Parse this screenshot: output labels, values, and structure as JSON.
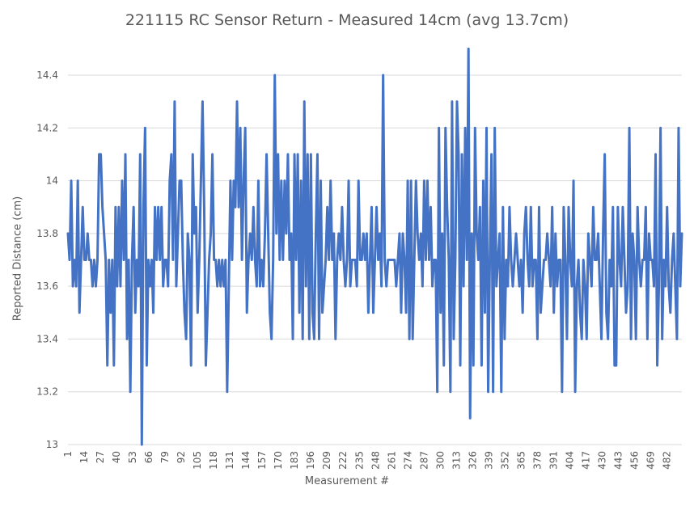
{
  "chart_data": {
    "type": "line",
    "title": "221115 RC Sensor Return - Measured 14cm (avg 13.7cm)",
    "xlabel": "Measurement #",
    "ylabel": "Reported Distance (cm)",
    "ylim": [
      13,
      14.5
    ],
    "yticks": [
      13,
      13.2,
      13.4,
      13.6,
      13.8,
      14,
      14.2,
      14.4
    ],
    "xlim": [
      1,
      494
    ],
    "xticks": [
      1,
      14,
      27,
      40,
      53,
      66,
      79,
      92,
      105,
      118,
      131,
      144,
      157,
      170,
      183,
      196,
      209,
      222,
      235,
      248,
      261,
      274,
      287,
      300,
      313,
      326,
      339,
      352,
      365,
      378,
      391,
      404,
      417,
      430,
      443,
      456,
      469,
      482
    ],
    "grid": "horizontal",
    "legend": "none",
    "color": "#4472c4",
    "series": [
      {
        "x_start": 1,
        "values": [
          13.8,
          13.7,
          14.0,
          13.6,
          13.7,
          13.6,
          14.0,
          13.5,
          13.7,
          13.9,
          13.7,
          13.7,
          13.8,
          13.7,
          13.7,
          13.6,
          13.7,
          13.6,
          13.7,
          14.1,
          14.1,
          13.9,
          13.8,
          13.7,
          13.3,
          13.7,
          13.5,
          13.7,
          13.3,
          13.9,
          13.6,
          13.9,
          13.6,
          14.0,
          13.7,
          14.1,
          13.4,
          13.7,
          13.2,
          13.7,
          13.9,
          13.5,
          13.7,
          13.6,
          14.1,
          13.0,
          13.9,
          14.2,
          13.3,
          13.7,
          13.6,
          13.7,
          13.5,
          13.9,
          13.7,
          13.9,
          13.7,
          13.9,
          13.6,
          13.7,
          13.7,
          13.6,
          14.0,
          14.1,
          13.7,
          14.3,
          13.6,
          13.8,
          14.0,
          14.0,
          13.7,
          13.5,
          13.4,
          13.8,
          13.7,
          13.3,
          14.1,
          13.8,
          13.9,
          13.5,
          13.7,
          14.0,
          14.3,
          13.9,
          13.3,
          13.5,
          13.7,
          13.8,
          14.1,
          13.7,
          13.7,
          13.6,
          13.7,
          13.6,
          13.7,
          13.6,
          13.7,
          13.2,
          13.6,
          14.0,
          13.7,
          14.0,
          13.9,
          14.3,
          13.9,
          14.2,
          13.7,
          14.0,
          14.2,
          13.5,
          13.7,
          13.8,
          13.7,
          13.9,
          13.7,
          13.6,
          14.0,
          13.6,
          13.7,
          13.6,
          13.8,
          14.1,
          13.8,
          13.5,
          13.4,
          13.7,
          14.4,
          13.8,
          14.1,
          13.7,
          14.0,
          13.7,
          14.0,
          13.8,
          14.1,
          13.7,
          13.8,
          13.4,
          14.1,
          13.7,
          14.1,
          13.5,
          14.0,
          13.4,
          14.3,
          13.6,
          14.1,
          13.4,
          14.1,
          13.5,
          13.4,
          13.8,
          14.1,
          13.4,
          14.0,
          13.5,
          13.6,
          13.7,
          13.9,
          13.7,
          14.0,
          13.7,
          13.8,
          13.4,
          13.7,
          13.8,
          13.7,
          13.9,
          13.7,
          13.6,
          13.7,
          14.0,
          13.6,
          13.7,
          13.7,
          13.7,
          13.6,
          14.0,
          13.7,
          13.7,
          13.8,
          13.7,
          13.8,
          13.5,
          13.7,
          13.9,
          13.5,
          13.7,
          13.9,
          13.7,
          13.8,
          13.6,
          14.4,
          13.7,
          13.6,
          13.7,
          13.7,
          13.7,
          13.7,
          13.7,
          13.6,
          13.7,
          13.8,
          13.5,
          13.8,
          13.7,
          13.5,
          14.0,
          13.4,
          14.0,
          13.4,
          13.7,
          14.0,
          13.8,
          13.7,
          13.8,
          13.6,
          14.0,
          13.7,
          14.0,
          13.7,
          13.9,
          13.6,
          13.7,
          13.7,
          13.2,
          14.2,
          13.5,
          13.8,
          13.3,
          14.2,
          13.9,
          13.7,
          13.2,
          14.3,
          13.4,
          13.7,
          14.3,
          14.1,
          13.3,
          14.1,
          13.6,
          14.2,
          13.7,
          14.5,
          13.1,
          13.8,
          13.3,
          14.2,
          13.8,
          13.7,
          13.9,
          13.3,
          14.0,
          13.5,
          14.2,
          13.2,
          13.7,
          14.1,
          13.2,
          14.2,
          13.6,
          13.7,
          13.8,
          13.2,
          13.9,
          13.4,
          13.7,
          13.6,
          13.9,
          13.7,
          13.6,
          13.7,
          13.8,
          13.7,
          13.6,
          13.7,
          13.5,
          13.8,
          13.9,
          13.7,
          13.6,
          13.9,
          13.6,
          13.7,
          13.7,
          13.4,
          13.9,
          13.5,
          13.6,
          13.7,
          13.7,
          13.8,
          13.7,
          13.6,
          13.9,
          13.5,
          13.8,
          13.6,
          13.7,
          13.7,
          13.2,
          13.9,
          13.7,
          13.4,
          13.9,
          13.7,
          13.6,
          14.0,
          13.2,
          13.6,
          13.7,
          13.5,
          13.4,
          13.7,
          13.6,
          13.4,
          13.8,
          13.7,
          13.6,
          13.9,
          13.7,
          13.7,
          13.8,
          13.6,
          13.4,
          13.8,
          14.1,
          13.5,
          13.4,
          13.7,
          13.6,
          13.9,
          13.3,
          13.3,
          13.9,
          13.7,
          13.6,
          13.9,
          13.7,
          13.5,
          13.6,
          14.2,
          13.4,
          13.8,
          13.7,
          13.4,
          13.9,
          13.7,
          13.6,
          13.7,
          13.7,
          13.9,
          13.4,
          13.8,
          13.7,
          13.7,
          13.6,
          14.1,
          13.3,
          13.6,
          14.2,
          13.4,
          13.7,
          13.6,
          13.9,
          13.6,
          13.5,
          13.7,
          13.8,
          13.6,
          13.4,
          14.2,
          13.6,
          13.8
        ]
      }
    ]
  }
}
